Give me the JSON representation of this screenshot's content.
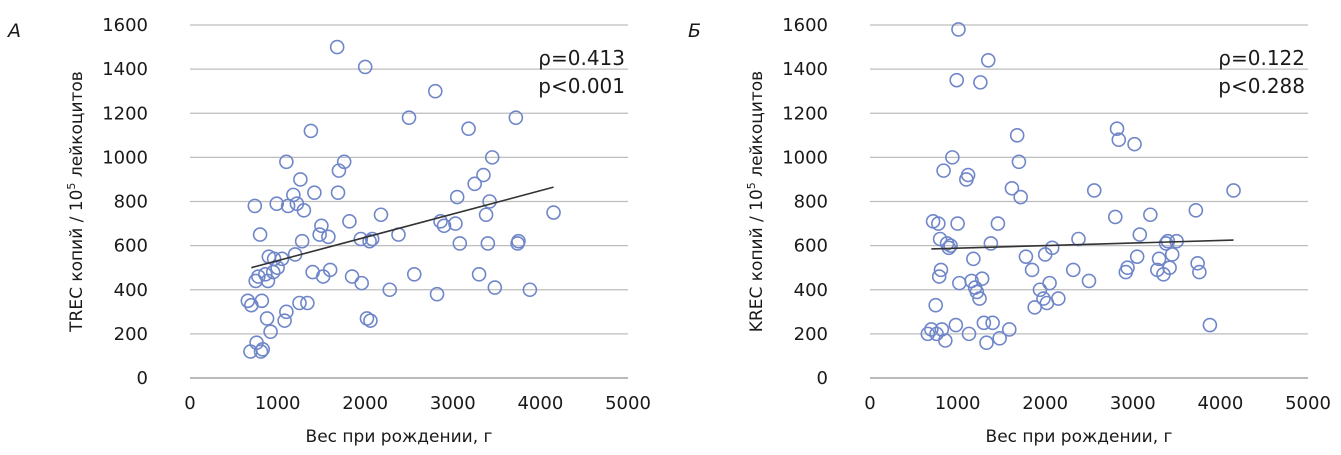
{
  "chart_data": [
    {
      "type": "scatter",
      "panel_label": "A",
      "xlabel": "Вес при рождении, г",
      "ylabel": "TREC копий / 10",
      "ylabel_sup": "5",
      "ylabel_tail": " лейкоцитов",
      "xlim": [
        0,
        5000
      ],
      "ylim": [
        0,
        1600
      ],
      "xticks": [
        0,
        1000,
        2000,
        3000,
        4000,
        5000
      ],
      "yticks": [
        0,
        200,
        400,
        600,
        800,
        1000,
        1200,
        1400,
        1600
      ],
      "grid": "horizontal",
      "marker_color": "#6f86c9",
      "trend_color": "#333333",
      "stat_rho": "ρ=0.413",
      "stat_p": "p<0.001",
      "trendline": {
        "x": [
          700,
          4150
        ],
        "y": [
          500,
          865
        ]
      },
      "points": [
        [
          660,
          350
        ],
        [
          690,
          120
        ],
        [
          700,
          330
        ],
        [
          740,
          780
        ],
        [
          750,
          440
        ],
        [
          760,
          160
        ],
        [
          780,
          460
        ],
        [
          800,
          650
        ],
        [
          810,
          120
        ],
        [
          820,
          350
        ],
        [
          830,
          130
        ],
        [
          860,
          470
        ],
        [
          880,
          270
        ],
        [
          890,
          440
        ],
        [
          900,
          550
        ],
        [
          920,
          210
        ],
        [
          950,
          480
        ],
        [
          960,
          540
        ],
        [
          990,
          790
        ],
        [
          1000,
          500
        ],
        [
          1050,
          540
        ],
        [
          1080,
          260
        ],
        [
          1100,
          980
        ],
        [
          1100,
          300
        ],
        [
          1120,
          780
        ],
        [
          1180,
          830
        ],
        [
          1200,
          560
        ],
        [
          1220,
          790
        ],
        [
          1250,
          340
        ],
        [
          1260,
          900
        ],
        [
          1280,
          620
        ],
        [
          1300,
          760
        ],
        [
          1340,
          340
        ],
        [
          1380,
          1120
        ],
        [
          1400,
          480
        ],
        [
          1420,
          840
        ],
        [
          1480,
          650
        ],
        [
          1500,
          690
        ],
        [
          1520,
          460
        ],
        [
          1580,
          640
        ],
        [
          1600,
          490
        ],
        [
          1680,
          1500
        ],
        [
          1690,
          840
        ],
        [
          1700,
          940
        ],
        [
          1760,
          980
        ],
        [
          1820,
          710
        ],
        [
          1850,
          460
        ],
        [
          1950,
          630
        ],
        [
          1960,
          430
        ],
        [
          2000,
          1410
        ],
        [
          2020,
          270
        ],
        [
          2050,
          620
        ],
        [
          2060,
          260
        ],
        [
          2080,
          630
        ],
        [
          2180,
          740
        ],
        [
          2280,
          400
        ],
        [
          2380,
          650
        ],
        [
          2500,
          1180
        ],
        [
          2560,
          470
        ],
        [
          2800,
          1300
        ],
        [
          2820,
          380
        ],
        [
          2860,
          710
        ],
        [
          2900,
          690
        ],
        [
          3030,
          700
        ],
        [
          3050,
          820
        ],
        [
          3080,
          610
        ],
        [
          3180,
          1130
        ],
        [
          3250,
          880
        ],
        [
          3300,
          470
        ],
        [
          3350,
          920
        ],
        [
          3380,
          740
        ],
        [
          3400,
          610
        ],
        [
          3420,
          800
        ],
        [
          3450,
          1000
        ],
        [
          3480,
          410
        ],
        [
          3720,
          1180
        ],
        [
          3740,
          610
        ],
        [
          3750,
          620
        ],
        [
          3880,
          400
        ],
        [
          4150,
          750
        ]
      ]
    },
    {
      "type": "scatter",
      "panel_label": "Б",
      "xlabel": "Вес при рождении, г",
      "ylabel": "KREC копий / 10",
      "ylabel_sup": "5",
      "ylabel_tail": " лейкоцитов",
      "xlim": [
        0,
        5000
      ],
      "ylim": [
        0,
        1600
      ],
      "xticks": [
        0,
        1000,
        2000,
        3000,
        4000,
        5000
      ],
      "yticks": [
        0,
        200,
        400,
        600,
        800,
        1000,
        1200,
        1400,
        1600
      ],
      "grid": "horizontal",
      "marker_color": "#6f86c9",
      "trend_color": "#333333",
      "stat_rho": "ρ=0.122",
      "stat_p": "p<0.288",
      "trendline": {
        "x": [
          700,
          4150
        ],
        "y": [
          585,
          625
        ]
      },
      "points": [
        [
          660,
          200
        ],
        [
          700,
          220
        ],
        [
          720,
          710
        ],
        [
          750,
          330
        ],
        [
          760,
          200
        ],
        [
          780,
          700
        ],
        [
          790,
          460
        ],
        [
          800,
          630
        ],
        [
          810,
          490
        ],
        [
          820,
          220
        ],
        [
          840,
          940
        ],
        [
          860,
          170
        ],
        [
          880,
          610
        ],
        [
          900,
          590
        ],
        [
          920,
          600
        ],
        [
          940,
          1000
        ],
        [
          980,
          240
        ],
        [
          990,
          1350
        ],
        [
          1000,
          700
        ],
        [
          1010,
          1580
        ],
        [
          1020,
          430
        ],
        [
          1100,
          900
        ],
        [
          1120,
          920
        ],
        [
          1130,
          200
        ],
        [
          1160,
          440
        ],
        [
          1180,
          540
        ],
        [
          1200,
          410
        ],
        [
          1220,
          390
        ],
        [
          1250,
          360
        ],
        [
          1260,
          1340
        ],
        [
          1280,
          450
        ],
        [
          1300,
          250
        ],
        [
          1330,
          160
        ],
        [
          1350,
          1440
        ],
        [
          1380,
          610
        ],
        [
          1400,
          250
        ],
        [
          1460,
          700
        ],
        [
          1480,
          180
        ],
        [
          1590,
          220
        ],
        [
          1620,
          860
        ],
        [
          1680,
          1100
        ],
        [
          1700,
          980
        ],
        [
          1720,
          820
        ],
        [
          1780,
          550
        ],
        [
          1850,
          490
        ],
        [
          1880,
          320
        ],
        [
          1940,
          400
        ],
        [
          1980,
          360
        ],
        [
          2000,
          560
        ],
        [
          2020,
          340
        ],
        [
          2050,
          430
        ],
        [
          2080,
          590
        ],
        [
          2150,
          360
        ],
        [
          2320,
          490
        ],
        [
          2380,
          630
        ],
        [
          2500,
          440
        ],
        [
          2560,
          850
        ],
        [
          2800,
          730
        ],
        [
          2820,
          1130
        ],
        [
          2840,
          1080
        ],
        [
          2920,
          480
        ],
        [
          2940,
          500
        ],
        [
          3020,
          1060
        ],
        [
          3050,
          550
        ],
        [
          3080,
          650
        ],
        [
          3200,
          740
        ],
        [
          3280,
          490
        ],
        [
          3300,
          540
        ],
        [
          3350,
          470
        ],
        [
          3380,
          610
        ],
        [
          3400,
          620
        ],
        [
          3420,
          500
        ],
        [
          3450,
          560
        ],
        [
          3500,
          620
        ],
        [
          3720,
          760
        ],
        [
          3740,
          520
        ],
        [
          3760,
          480
        ],
        [
          3880,
          240
        ],
        [
          4150,
          850
        ]
      ]
    }
  ]
}
